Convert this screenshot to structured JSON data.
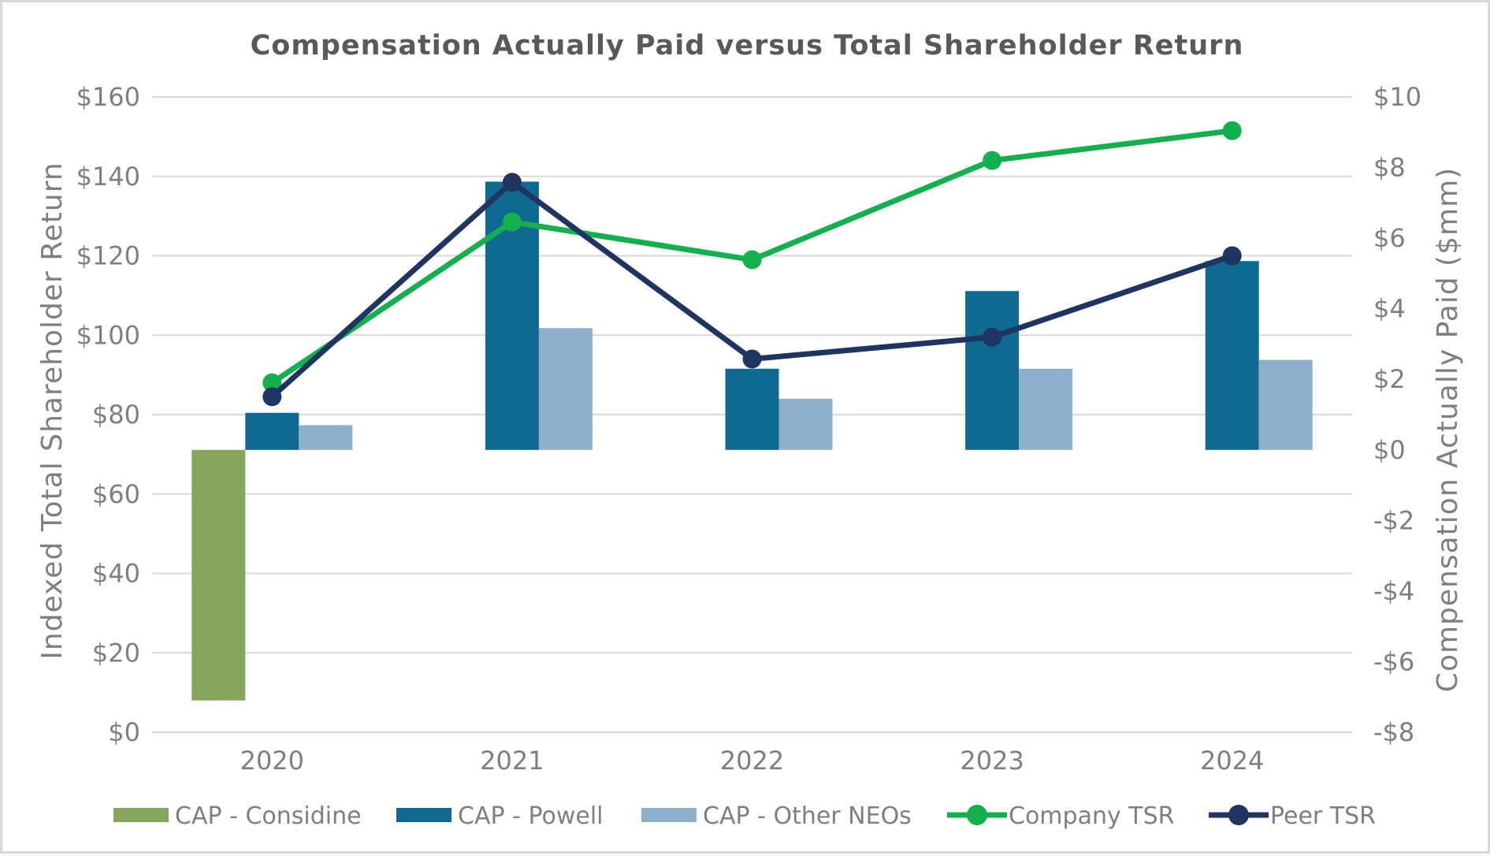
{
  "chart_data": {
    "type": "bar",
    "title": "Compensation Actually Paid versus Total Shareholder Return",
    "categories": [
      "2020",
      "2021",
      "2022",
      "2023",
      "2024"
    ],
    "y_left": {
      "label": "Indexed Total Shareholder Return",
      "range": [
        0,
        160
      ],
      "ticks": [
        "$0",
        "$20",
        "$40",
        "$60",
        "$80",
        "$100",
        "$120",
        "$140",
        "$160"
      ],
      "tick_values": [
        0,
        20,
        40,
        60,
        80,
        100,
        120,
        140,
        160
      ]
    },
    "y_right": {
      "label": "Compensation Actually Paid ($mm)",
      "range": [
        -8,
        10
      ],
      "ticks": [
        "-$8",
        "-$6",
        "-$4",
        "-$2",
        "$0",
        "$2",
        "$4",
        "$6",
        "$8",
        "$10"
      ],
      "tick_values": [
        -8,
        -6,
        -4,
        -2,
        0,
        2,
        4,
        6,
        8,
        10
      ]
    },
    "bar_series": [
      {
        "name": "CAP - Considine",
        "axis": "right",
        "color": "#86a65d",
        "values": [
          -7.1,
          null,
          null,
          null,
          null
        ]
      },
      {
        "name": "CAP - Powell",
        "axis": "right",
        "color": "#0e6a90",
        "values": [
          1.05,
          7.6,
          2.3,
          4.5,
          5.35
        ]
      },
      {
        "name": "CAP - Other NEOs",
        "axis": "right",
        "color": "#8eb0ca",
        "values": [
          0.7,
          3.45,
          1.45,
          2.3,
          2.55
        ]
      }
    ],
    "line_series": [
      {
        "name": "Company TSR",
        "axis": "left",
        "color": "#14b04e",
        "values": [
          88,
          128.5,
          119,
          144,
          151.5
        ]
      },
      {
        "name": "Peer TSR",
        "axis": "left",
        "color": "#1f3461",
        "values": [
          84.5,
          138.5,
          94,
          99.5,
          120
        ]
      }
    ],
    "legend": {
      "position": "bottom",
      "items": [
        "CAP - Considine",
        "CAP - Powell",
        "CAP - Other NEOs",
        "Company TSR",
        "Peer TSR"
      ]
    },
    "grid": true
  }
}
